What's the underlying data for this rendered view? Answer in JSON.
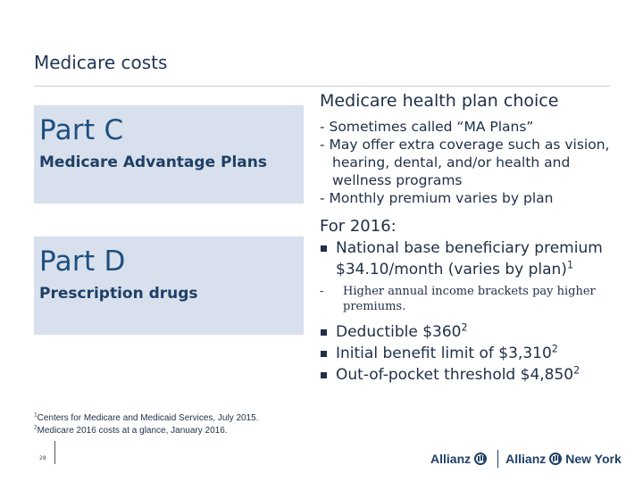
{
  "slide": {
    "title": "Medicare costs",
    "page_number": "28"
  },
  "part_c": {
    "name": "Part C",
    "subtitle": "Medicare Advantage Plans"
  },
  "part_d": {
    "name": "Part D",
    "subtitle": "Prescription drugs"
  },
  "plan_choice": {
    "heading": "Medicare health plan choice",
    "items": [
      "- Sometimes called “MA Plans”",
      "- May offer extra coverage such as vision, hearing, dental, and/or health and wellness programs",
      "- Monthly premium varies by plan"
    ]
  },
  "year_info": {
    "heading": "For 2016:",
    "premium": {
      "text": "National base beneficiary premium $34.10/month (varies by plan)",
      "sup": "1"
    },
    "sub_dash": "-",
    "sub_note": "Higher annual income brackets pay higher premiums.",
    "deductible": {
      "text": "Deductible $360",
      "sup": "2"
    },
    "initial_limit": {
      "text": "Initial benefit limit of $3,310",
      "sup": "2"
    },
    "oop": {
      "text": "Out-of-pocket threshold $4,850",
      "sup": "2"
    }
  },
  "footnotes": [
    {
      "num": "1",
      "text": "Centers for Medicare and Medicaid Services, July 2015."
    },
    {
      "num": "2",
      "text": "Medicare 2016 costs at a glance, January 2016."
    }
  ],
  "logos": {
    "left": "Allianz",
    "right": "Allianz",
    "right_suffix": "New York",
    "icon": "allianz-eagle-icon"
  }
}
